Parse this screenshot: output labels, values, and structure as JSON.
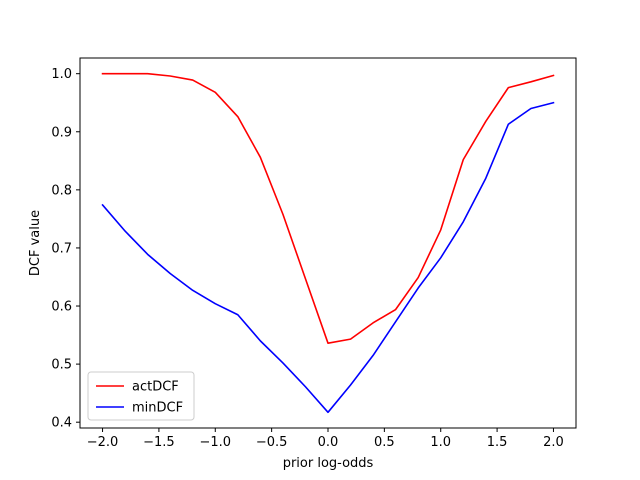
{
  "chart_data": {
    "type": "line",
    "title": "",
    "xlabel": "prior log-odds",
    "ylabel": "DCF value",
    "xlim": [
      -2.2,
      2.2
    ],
    "ylim": [
      0.39,
      1.027
    ],
    "grid": false,
    "legend_position": "lower-left",
    "x": [
      -2.0,
      -1.8,
      -1.6,
      -1.4,
      -1.2,
      -1.0,
      -0.8,
      -0.6,
      -0.4,
      -0.2,
      0.0,
      0.2,
      0.4,
      0.6,
      0.8,
      1.0,
      1.2,
      1.4,
      1.6,
      1.8,
      2.0
    ],
    "xticks": [
      -2.0,
      -1.5,
      -1.0,
      -0.5,
      0.0,
      0.5,
      1.0,
      1.5,
      2.0
    ],
    "xtick_labels": [
      "−2.0",
      "−1.5",
      "−1.0",
      "−0.5",
      "0.0",
      "0.5",
      "1.0",
      "1.5",
      "2.0"
    ],
    "yticks": [
      0.4,
      0.5,
      0.6,
      0.7,
      0.8,
      0.9,
      1.0
    ],
    "ytick_labels": [
      "0.4",
      "0.5",
      "0.6",
      "0.7",
      "0.8",
      "0.9",
      "1.0"
    ],
    "series": [
      {
        "name": "actDCF",
        "color": "#ff0000",
        "values": [
          1.0,
          1.0,
          1.0,
          0.996,
          0.989,
          0.968,
          0.926,
          0.856,
          0.758,
          0.647,
          0.536,
          0.543,
          0.571,
          0.594,
          0.649,
          0.731,
          0.852,
          0.918,
          0.976,
          0.986,
          0.997
        ]
      },
      {
        "name": "minDCF",
        "color": "#0000ff",
        "values": [
          0.774,
          0.729,
          0.689,
          0.656,
          0.627,
          0.604,
          0.585,
          0.54,
          0.502,
          0.461,
          0.417,
          0.464,
          0.515,
          0.573,
          0.631,
          0.683,
          0.745,
          0.82,
          0.913,
          0.94,
          0.95
        ]
      }
    ]
  }
}
